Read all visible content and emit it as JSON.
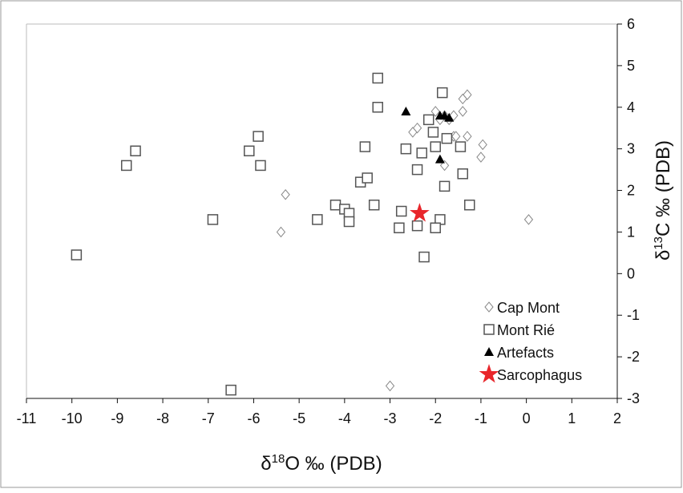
{
  "chart_data": {
    "type": "scatter",
    "x_label_parts": [
      "δ",
      "18",
      "O ‰ (PDB)"
    ],
    "y_label_parts": [
      "δ",
      "13",
      "C ‰ (PDB)"
    ],
    "xlim": [
      -11,
      2
    ],
    "ylim": [
      -3,
      6
    ],
    "xticks": [
      -11,
      -10,
      -9,
      -8,
      -7,
      -6,
      -5,
      -4,
      -3,
      -2,
      -1,
      0,
      1,
      2
    ],
    "yticks": [
      -3,
      -2,
      -1,
      0,
      1,
      2,
      3,
      4,
      5,
      6
    ],
    "series": [
      {
        "name": "Cap Mont",
        "marker": "diamond",
        "color": "#888888",
        "x": [
          -5.3,
          -5.4,
          -3.0,
          0.05,
          -0.96,
          -1.0,
          -1.3,
          -1.4,
          -1.4,
          -1.3,
          -1.8,
          -2.4,
          -2.5,
          -2.0,
          -1.9,
          -1.8,
          -1.7,
          -1.6,
          -1.6,
          -1.55
        ],
        "values": [
          1.9,
          1.0,
          -2.7,
          1.3,
          3.1,
          2.8,
          4.3,
          4.2,
          3.9,
          3.3,
          2.6,
          3.5,
          3.4,
          3.9,
          3.7,
          3.8,
          3.7,
          3.8,
          3.3,
          3.3
        ]
      },
      {
        "name": "Mont Rié",
        "marker": "square",
        "color": "#555555",
        "x": [
          -9.9,
          -8.6,
          -8.8,
          -6.9,
          -6.5,
          -5.9,
          -6.1,
          -5.85,
          -4.6,
          -4.2,
          -4.0,
          -3.9,
          -3.9,
          -3.65,
          -3.5,
          -3.55,
          -3.35,
          -3.27,
          -3.27,
          -2.8,
          -2.75,
          -2.65,
          -2.3,
          -2.4,
          -2.4,
          -2.25,
          -1.9,
          -2.0,
          -1.85,
          -2.15,
          -2.0,
          -1.8,
          -1.75,
          -1.45,
          -1.4,
          -1.25,
          -2.05
        ],
        "values": [
          0.45,
          2.95,
          2.6,
          1.3,
          -2.8,
          3.3,
          2.95,
          2.6,
          1.3,
          1.65,
          1.55,
          1.45,
          1.25,
          2.2,
          2.3,
          3.05,
          1.65,
          4.7,
          4.0,
          1.1,
          1.5,
          3.0,
          2.9,
          2.5,
          1.15,
          0.4,
          1.3,
          1.1,
          4.35,
          3.7,
          3.05,
          2.1,
          3.25,
          3.05,
          2.4,
          1.65,
          3.4
        ]
      },
      {
        "name": "Artefacts",
        "marker": "triangle",
        "color": "#000000",
        "x": [
          -2.65,
          -1.9,
          -1.9,
          -1.8,
          -1.7
        ],
        "values": [
          3.9,
          2.75,
          3.8,
          3.8,
          3.75
        ]
      },
      {
        "name": "Sarcophagus",
        "marker": "star",
        "color": "#e8262b",
        "x": [
          -2.35
        ],
        "values": [
          1.45
        ]
      }
    ]
  }
}
